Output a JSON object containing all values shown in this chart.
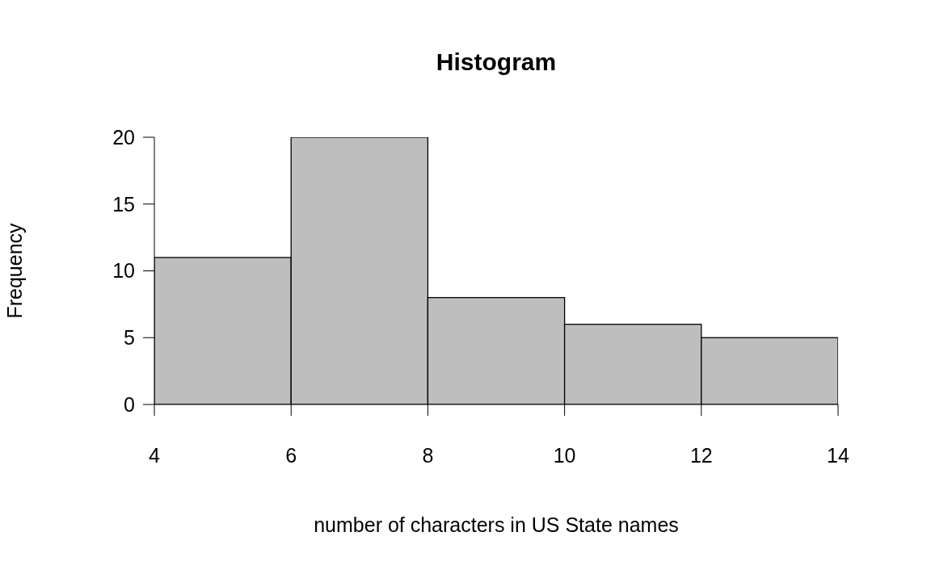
{
  "chart_data": {
    "type": "histogram",
    "title": "Histogram",
    "xlabel": "number of characters in US State names",
    "ylabel": "Frequency",
    "bins": [
      4,
      6,
      8,
      10,
      12,
      14
    ],
    "values": [
      11,
      20,
      8,
      6,
      5
    ],
    "color": "#bebebe",
    "xlim": [
      4,
      14
    ],
    "xticks": [
      4,
      6,
      8,
      10,
      12,
      14
    ],
    "ylim": [
      0,
      20
    ],
    "yticks": [
      0,
      5,
      10,
      15,
      20
    ]
  }
}
